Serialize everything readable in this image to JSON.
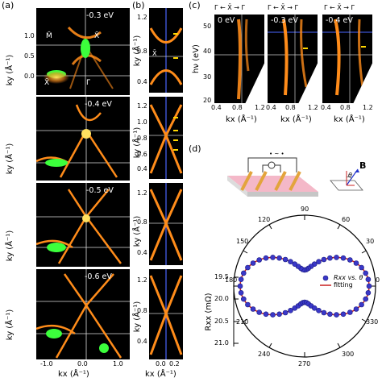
{
  "panels": {
    "a": {
      "label": "(a)",
      "maps": [
        {
          "energy": "-0.3 eV"
        },
        {
          "energy": "-0.4 eV"
        },
        {
          "energy": "-0.5 eV"
        },
        {
          "energy": "-0.6 eV"
        }
      ],
      "bz_labels": {
        "mbar": "M̄",
        "xbar_top": "X̄",
        "xbar_left": "X̄",
        "gamma_bar": "Γ̄"
      },
      "ylabel": "ky (Å⁻¹)",
      "yticks": [
        "1.0",
        "0.5",
        "0.0"
      ],
      "xlabel": "kx (Å⁻¹)",
      "xticks": [
        "-1.0",
        "0.0",
        "1.0"
      ]
    },
    "b": {
      "label": "(b)",
      "ylabel": "ky (Å⁻¹)",
      "ticks_1": [
        "1.2",
        "0.8",
        "0.4"
      ],
      "ticks_2": [
        "1.2",
        "1.0",
        "0.8",
        "0.6",
        "0.4"
      ],
      "ticks_3": [
        "1.2",
        "0.8",
        "0.4"
      ],
      "ticks_4": [
        "1.2",
        "0.8",
        "0.4"
      ],
      "xbar": "X̄",
      "xlabel": "kx (Å⁻¹)",
      "xticks": [
        "0.0",
        "0.2"
      ]
    },
    "c": {
      "label": "(c)",
      "path": [
        "Γ̄",
        "X̄",
        "Γ̄"
      ],
      "energies": [
        "0 eV",
        "-0.3 eV",
        "-0.4 eV"
      ],
      "ylabel": "hν (eV)",
      "yticks": [
        "50",
        "40",
        "30",
        "20"
      ],
      "xticks": [
        "0.4",
        "0.8",
        "1.2"
      ],
      "xlabel": "kx (Å⁻¹)"
    },
    "d": {
      "label": "(d)",
      "field_label": "B",
      "angle_symbol": "θ",
      "angles": [
        "90",
        "120",
        "60",
        "150",
        "30",
        "180",
        "0",
        "210",
        "330",
        "240",
        "300",
        "270"
      ],
      "radial_label": "Rxx (mΩ)",
      "radial_ticks": [
        "19.5",
        "20.0",
        "20.5",
        "21.0"
      ],
      "legend": {
        "data": "Rxx vs. θ",
        "fit": "fitting"
      }
    }
  },
  "colors": {
    "bg": "#000000",
    "spectral": "#ff8c1a",
    "hot": "#ffe060",
    "green": "#3cff3c",
    "arrow": "#ffd700",
    "line": "#4a66ff"
  }
}
